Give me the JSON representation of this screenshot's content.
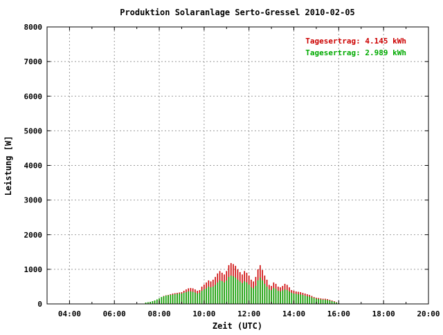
{
  "chart_data": {
    "type": "bar",
    "title": "Produktion Solaranlage Serto-Gressel 2010-02-05",
    "xlabel": "Zeit (UTC)",
    "ylabel": "Leistung [W]",
    "xlim": [
      3,
      20
    ],
    "ylim": [
      0,
      8000
    ],
    "x_ticks": [
      4,
      6,
      8,
      10,
      12,
      14,
      16,
      18,
      20
    ],
    "x_tick_labels": [
      "04:00",
      "06:00",
      "08:00",
      "10:00",
      "12:00",
      "14:00",
      "16:00",
      "18:00",
      "20:00"
    ],
    "y_ticks": [
      0,
      1000,
      2000,
      3000,
      4000,
      5000,
      6000,
      7000,
      8000
    ],
    "y_tick_labels": [
      "0",
      "1000",
      "2000",
      "3000",
      "4000",
      "5000",
      "6000",
      "7000",
      "8000"
    ],
    "grid": true,
    "legend_position": "top-right",
    "legend": [
      {
        "label": "Tagesertrag: 4.145 kWh",
        "color": "#cc0000"
      },
      {
        "label": "Tagesertrag: 2.989 kWh",
        "color": "#00aa00"
      }
    ],
    "x": [
      7.4,
      7.5,
      7.6,
      7.7,
      7.8,
      7.9,
      8.0,
      8.1,
      8.2,
      8.3,
      8.4,
      8.5,
      8.6,
      8.7,
      8.8,
      8.9,
      9.0,
      9.1,
      9.2,
      9.3,
      9.4,
      9.5,
      9.6,
      9.7,
      9.8,
      9.9,
      10.0,
      10.1,
      10.2,
      10.3,
      10.4,
      10.5,
      10.6,
      10.7,
      10.8,
      10.9,
      11.0,
      11.1,
      11.2,
      11.3,
      11.4,
      11.5,
      11.6,
      11.7,
      11.8,
      11.9,
      12.0,
      12.1,
      12.2,
      12.3,
      12.4,
      12.5,
      12.6,
      12.7,
      12.8,
      12.9,
      13.0,
      13.1,
      13.2,
      13.3,
      13.4,
      13.5,
      13.6,
      13.7,
      13.8,
      13.9,
      14.0,
      14.1,
      14.2,
      14.3,
      14.4,
      14.5,
      14.6,
      14.7,
      14.8,
      14.9,
      15.0,
      15.1,
      15.2,
      15.3,
      15.4,
      15.5,
      15.6,
      15.7,
      15.8,
      15.9,
      16.0
    ],
    "series": [
      {
        "name": "Tagesertrag: 4.145 kWh",
        "color": "#cc0000",
        "values": [
          40,
          50,
          60,
          80,
          100,
          130,
          160,
          200,
          230,
          250,
          260,
          280,
          300,
          310,
          320,
          330,
          340,
          380,
          420,
          450,
          460,
          450,
          420,
          380,
          400,
          500,
          560,
          620,
          680,
          650,
          700,
          780,
          880,
          950,
          900,
          850,
          950,
          1120,
          1180,
          1150,
          1100,
          1000,
          920,
          850,
          950,
          900,
          820,
          700,
          650,
          780,
          1000,
          1120,
          980,
          820,
          700,
          550,
          520,
          620,
          580,
          500,
          480,
          520,
          580,
          550,
          480,
          400,
          380,
          360,
          350,
          340,
          320,
          300,
          280,
          260,
          230,
          200,
          180,
          170,
          160,
          150,
          150,
          140,
          120,
          100,
          80,
          50,
          20
        ]
      },
      {
        "name": "Tagesertrag: 2.989 kWh",
        "color": "#00aa00",
        "values": [
          40,
          50,
          60,
          80,
          100,
          130,
          160,
          200,
          220,
          240,
          250,
          260,
          270,
          280,
          290,
          300,
          300,
          320,
          340,
          360,
          360,
          350,
          330,
          300,
          320,
          380,
          420,
          450,
          500,
          480,
          500,
          550,
          620,
          680,
          660,
          620,
          680,
          780,
          820,
          800,
          760,
          700,
          650,
          600,
          650,
          620,
          560,
          480,
          450,
          520,
          680,
          760,
          680,
          580,
          500,
          420,
          400,
          460,
          430,
          380,
          360,
          390,
          420,
          400,
          360,
          320,
          300,
          290,
          280,
          270,
          260,
          240,
          220,
          210,
          190,
          170,
          150,
          140,
          130,
          120,
          120,
          110,
          100,
          80,
          60,
          40,
          20
        ]
      }
    ]
  }
}
